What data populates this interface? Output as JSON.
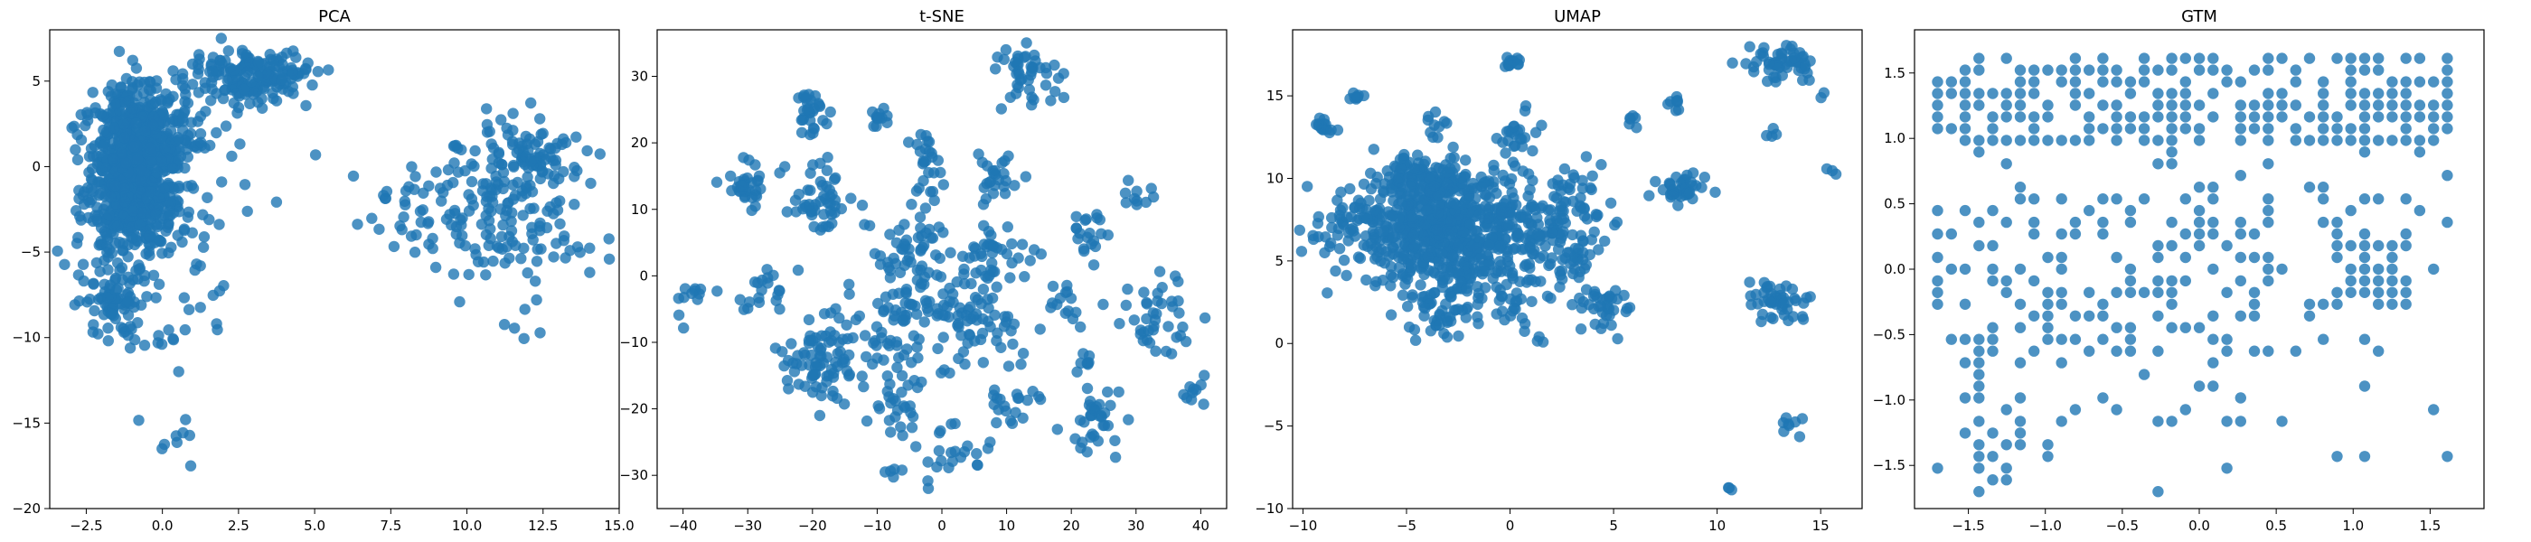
{
  "figure": {
    "marker_color": "#1f77b4",
    "marker_alpha": 0.8,
    "panels": [
      {
        "chart_data": {
          "type": "scatter",
          "title": "PCA",
          "xlabel": "",
          "ylabel": "",
          "xlim": [
            -3.7,
            15.0
          ],
          "ylim": [
            -20.0,
            8.0
          ],
          "xticks": [
            -2.5,
            0.0,
            2.5,
            5.0,
            7.5,
            10.0,
            12.5,
            15.0
          ],
          "xtick_labels": [
            "−2.5",
            "0.0",
            "2.5",
            "5.0",
            "7.5",
            "10.0",
            "12.5",
            "15.0"
          ],
          "yticks": [
            -20,
            -15,
            -10,
            -5,
            0,
            5
          ],
          "ytick_labels": [
            "−20",
            "−15",
            "−10",
            "−5",
            "0",
            "5"
          ],
          "grid": false,
          "clusters": [
            {
              "cx": -1.0,
              "cy": -0.5,
              "sx": 0.75,
              "sy": 2.4,
              "n": 700
            },
            {
              "cx": -0.3,
              "cy": 2.2,
              "sx": 0.9,
              "sy": 1.3,
              "n": 180
            },
            {
              "cx": 2.8,
              "cy": 5.2,
              "sx": 0.9,
              "sy": 0.8,
              "n": 150
            },
            {
              "cx": 4.2,
              "cy": 5.6,
              "sx": 0.6,
              "sy": 0.5,
              "n": 25
            },
            {
              "cx": -1.6,
              "cy": -8.0,
              "sx": 0.55,
              "sy": 1.1,
              "n": 70
            },
            {
              "cx": -0.5,
              "cy": -10.0,
              "sx": 0.7,
              "sy": 0.7,
              "n": 12
            },
            {
              "cx": 0.3,
              "cy": -15.5,
              "sx": 0.7,
              "sy": 1.6,
              "n": 9
            },
            {
              "cx": 0.6,
              "cy": -4.5,
              "sx": 1.3,
              "sy": 3.2,
              "n": 60
            },
            {
              "cx": 7.8,
              "cy": -2.6,
              "sx": 0.9,
              "sy": 1.4,
              "n": 25
            },
            {
              "cx": 11.0,
              "cy": -1.5,
              "sx": 1.4,
              "sy": 2.1,
              "n": 150
            },
            {
              "cx": 12.3,
              "cy": 0.5,
              "sx": 0.9,
              "sy": 1.0,
              "n": 50
            },
            {
              "cx": 11.0,
              "cy": -5.0,
              "sx": 0.7,
              "sy": 0.8,
              "n": 30
            },
            {
              "cx": 12.0,
              "cy": -9.5,
              "sx": 0.5,
              "sy": 1.8,
              "n": 6
            }
          ]
        }
      },
      {
        "chart_data": {
          "type": "scatter",
          "title": "t-SNE",
          "xlabel": "",
          "ylabel": "",
          "xlim": [
            -44.0,
            44.0
          ],
          "ylim": [
            -35.0,
            37.0
          ],
          "xticks": [
            -40,
            -30,
            -20,
            -10,
            0,
            10,
            20,
            30,
            40
          ],
          "xtick_labels": [
            "−40",
            "−30",
            "−20",
            "−10",
            "0",
            "10",
            "20",
            "30",
            "40"
          ],
          "yticks": [
            -30,
            -20,
            -10,
            0,
            10,
            20,
            30
          ],
          "ytick_labels": [
            "−30",
            "−20",
            "−10",
            "0",
            "10",
            "20",
            "30"
          ],
          "grid": false,
          "clusters": [
            {
              "cx": -20.0,
              "cy": 24.5,
              "sx": 1.5,
              "sy": 1.5,
              "n": 30
            },
            {
              "cx": -30.0,
              "cy": 14.0,
              "sx": 1.8,
              "sy": 1.8,
              "n": 35
            },
            {
              "cx": -18.0,
              "cy": 12.0,
              "sx": 2.5,
              "sy": 2.5,
              "n": 50
            },
            {
              "cx": -10.0,
              "cy": 24.0,
              "sx": 1.0,
              "sy": 1.0,
              "n": 12
            },
            {
              "cx": -2.0,
              "cy": 15.0,
              "sx": 1.5,
              "sy": 3.0,
              "n": 30
            },
            {
              "cx": 8.0,
              "cy": 15.0,
              "sx": 1.5,
              "sy": 2.5,
              "n": 25
            },
            {
              "cx": 14.0,
              "cy": 30.0,
              "sx": 3.0,
              "sy": 3.0,
              "n": 45
            },
            {
              "cx": 30.0,
              "cy": 12.0,
              "sx": 1.5,
              "sy": 1.5,
              "n": 10
            },
            {
              "cx": -5.0,
              "cy": 3.0,
              "sx": 3.0,
              "sy": 3.0,
              "n": 45
            },
            {
              "cx": 7.0,
              "cy": 3.0,
              "sx": 3.0,
              "sy": 3.0,
              "n": 40
            },
            {
              "cx": 23.0,
              "cy": 6.0,
              "sx": 2.0,
              "sy": 2.0,
              "n": 20
            },
            {
              "cx": -27.0,
              "cy": -2.0,
              "sx": 2.0,
              "sy": 2.0,
              "n": 20
            },
            {
              "cx": -39.0,
              "cy": -4.0,
              "sx": 1.5,
              "sy": 1.5,
              "n": 12
            },
            {
              "cx": -18.0,
              "cy": -12.0,
              "sx": 3.5,
              "sy": 3.5,
              "n": 90
            },
            {
              "cx": -5.0,
              "cy": -8.0,
              "sx": 4.0,
              "sy": 4.0,
              "n": 70
            },
            {
              "cx": 5.0,
              "cy": -7.0,
              "sx": 4.0,
              "sy": 4.0,
              "n": 70
            },
            {
              "cx": -8.0,
              "cy": -20.0,
              "sx": 2.0,
              "sy": 2.0,
              "n": 20
            },
            {
              "cx": 1.0,
              "cy": -26.0,
              "sx": 2.5,
              "sy": 2.5,
              "n": 25
            },
            {
              "cx": -7.0,
              "cy": -29.5,
              "sx": 1.0,
              "sy": 0.5,
              "n": 5
            },
            {
              "cx": 10.0,
              "cy": -20.0,
              "sx": 2.0,
              "sy": 2.0,
              "n": 20
            },
            {
              "cx": 24.0,
              "cy": -22.0,
              "sx": 2.5,
              "sy": 2.5,
              "n": 35
            },
            {
              "cx": 22.0,
              "cy": -13.0,
              "sx": 1.0,
              "sy": 1.0,
              "n": 8
            },
            {
              "cx": 33.0,
              "cy": -5.0,
              "sx": 3.0,
              "sy": 3.0,
              "n": 40
            },
            {
              "cx": 39.0,
              "cy": -17.0,
              "sx": 1.0,
              "sy": 1.0,
              "n": 10
            },
            {
              "cx": 19.0,
              "cy": -5.0,
              "sx": 2.0,
              "sy": 2.0,
              "n": 15
            }
          ]
        }
      },
      {
        "chart_data": {
          "type": "scatter",
          "title": "UMAP",
          "xlabel": "",
          "ylabel": "",
          "xlim": [
            -10.5,
            17.0
          ],
          "ylim": [
            -10.0,
            19.0
          ],
          "xticks": [
            -10,
            -5,
            0,
            5,
            10,
            15
          ],
          "xtick_labels": [
            "−10",
            "−5",
            "0",
            "5",
            "10",
            "15"
          ],
          "yticks": [
            -10,
            -5,
            0,
            5,
            10,
            15
          ],
          "ytick_labels": [
            "−10",
            "−5",
            "0",
            "5",
            "10",
            "15"
          ],
          "grid": false,
          "clusters": [
            {
              "cx": -3.0,
              "cy": 7.0,
              "sx": 2.8,
              "sy": 1.5,
              "n": 650
            },
            {
              "cx": -4.0,
              "cy": 10.0,
              "sx": 1.5,
              "sy": 0.6,
              "n": 120
            },
            {
              "cx": -3.5,
              "cy": 4.0,
              "sx": 1.5,
              "sy": 1.2,
              "n": 90
            },
            {
              "cx": -3.5,
              "cy": 1.5,
              "sx": 0.8,
              "sy": 0.7,
              "n": 30
            },
            {
              "cx": -9.0,
              "cy": 13.2,
              "sx": 0.3,
              "sy": 0.3,
              "n": 15
            },
            {
              "cx": -7.5,
              "cy": 15.0,
              "sx": 0.2,
              "sy": 0.2,
              "n": 8
            },
            {
              "cx": -3.5,
              "cy": 13.0,
              "sx": 0.3,
              "sy": 0.5,
              "n": 10
            },
            {
              "cx": 0.2,
              "cy": 17.0,
              "sx": 0.2,
              "sy": 0.2,
              "n": 15
            },
            {
              "cx": 0.5,
              "cy": 12.5,
              "sx": 0.5,
              "sy": 0.8,
              "n": 25
            },
            {
              "cx": 3.0,
              "cy": 9.0,
              "sx": 0.7,
              "sy": 1.2,
              "n": 40
            },
            {
              "cx": 3.0,
              "cy": 5.0,
              "sx": 0.6,
              "sy": 1.0,
              "n": 30
            },
            {
              "cx": 4.5,
              "cy": 2.0,
              "sx": 0.7,
              "sy": 0.7,
              "n": 35
            },
            {
              "cx": 8.5,
              "cy": 9.5,
              "sx": 0.6,
              "sy": 0.5,
              "n": 40
            },
            {
              "cx": 8.0,
              "cy": 14.5,
              "sx": 0.2,
              "sy": 0.2,
              "n": 8
            },
            {
              "cx": 6.0,
              "cy": 13.5,
              "sx": 0.3,
              "sy": 0.3,
              "n": 6
            },
            {
              "cx": 13.0,
              "cy": 17.0,
              "sx": 1.0,
              "sy": 0.6,
              "n": 55
            },
            {
              "cx": 12.5,
              "cy": 12.7,
              "sx": 0.2,
              "sy": 0.2,
              "n": 4
            },
            {
              "cx": 13.0,
              "cy": 2.5,
              "sx": 0.8,
              "sy": 0.6,
              "n": 45
            },
            {
              "cx": 13.5,
              "cy": -5.0,
              "sx": 0.3,
              "sy": 0.3,
              "n": 8
            },
            {
              "cx": 10.7,
              "cy": -8.8,
              "sx": 0.1,
              "sy": 0.1,
              "n": 3
            },
            {
              "cx": 15.5,
              "cy": 10.5,
              "sx": 0.2,
              "sy": 0.2,
              "n": 3
            },
            {
              "cx": 1.5,
              "cy": 0.3,
              "sx": 0.2,
              "sy": 0.2,
              "n": 3
            },
            {
              "cx": 0.0,
              "cy": 3.0,
              "sx": 1.0,
              "sy": 1.0,
              "n": 40
            },
            {
              "cx": 15.0,
              "cy": 15.0,
              "sx": 0.2,
              "sy": 0.2,
              "n": 2
            }
          ]
        }
      },
      {
        "chart_data": {
          "type": "scatter",
          "title": "GTM",
          "xlabel": "",
          "ylabel": "",
          "xlim": [
            -1.85,
            1.85
          ],
          "ylim": [
            -1.83,
            1.83
          ],
          "xticks": [
            -1.5,
            -1.0,
            -0.5,
            0.0,
            0.5,
            1.0,
            1.5
          ],
          "xtick_labels": [
            "−1.5",
            "−1.0",
            "−0.5",
            "0.0",
            "0.5",
            "1.0",
            "1.5"
          ],
          "yticks": [
            -1.5,
            -1.0,
            -0.5,
            0.0,
            0.5,
            1.0,
            1.5
          ],
          "ytick_labels": [
            "−1.5",
            "−1.0",
            "−0.5",
            "0.0",
            "0.5",
            "1.0",
            "1.5"
          ],
          "grid": false,
          "lattice": {
            "min": -1.7,
            "max": 1.7,
            "step": 0.0895
          },
          "regions": [
            {
              "x0": -1.7,
              "x1": 1.7,
              "y0": 0.95,
              "y1": 1.7,
              "p": 0.6
            },
            {
              "x0": -1.7,
              "x1": 0.5,
              "y0": -0.7,
              "y1": 0.6,
              "p": 0.4
            },
            {
              "x0": 0.85,
              "x1": 1.4,
              "y0": -0.3,
              "y1": 0.35,
              "p": 0.7
            },
            {
              "x0": -1.6,
              "x1": -1.1,
              "y0": -1.7,
              "y1": -0.7,
              "p": 0.4
            },
            {
              "x0": -0.9,
              "x1": 0.4,
              "y0": -1.25,
              "y1": -0.7,
              "p": 0.25
            },
            {
              "x0": -0.3,
              "x1": 1.7,
              "y0": 0.5,
              "y1": 0.95,
              "p": 0.15
            },
            {
              "x0": 0.5,
              "x1": 1.7,
              "y0": -0.7,
              "y1": 0.5,
              "p": 0.1
            },
            {
              "x0": -1.7,
              "x1": 1.7,
              "y0": -1.7,
              "y1": 1.7,
              "p": 0.05
            }
          ]
        }
      }
    ]
  }
}
